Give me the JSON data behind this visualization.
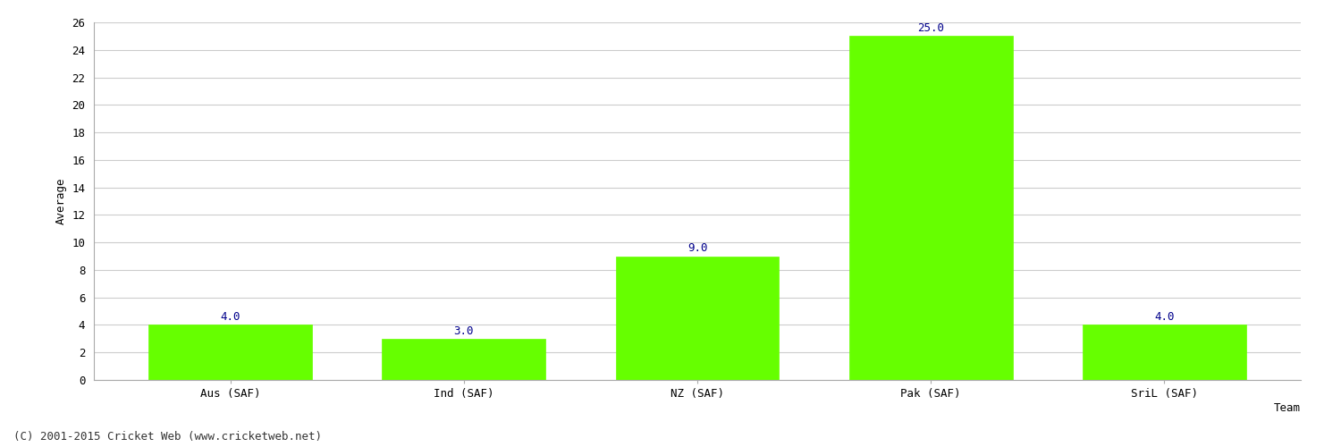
{
  "categories": [
    "Aus (SAF)",
    "Ind (SAF)",
    "NZ (SAF)",
    "Pak (SAF)",
    "SriL (SAF)"
  ],
  "values": [
    4.0,
    3.0,
    9.0,
    25.0,
    4.0
  ],
  "bar_color": "#66ff00",
  "bar_edge_color": "#66ff00",
  "label_color": "#00008B",
  "xlabel": "Team",
  "ylabel": "Average",
  "ylim": [
    0,
    26
  ],
  "yticks": [
    0,
    2,
    4,
    6,
    8,
    10,
    12,
    14,
    16,
    18,
    20,
    22,
    24,
    26
  ],
  "grid_color": "#cccccc",
  "bg_color": "#ffffff",
  "footer": "(C) 2001-2015 Cricket Web (www.cricketweb.net)",
  "label_fontsize": 9,
  "axis_fontsize": 9,
  "footer_fontsize": 9,
  "xlabel_fontsize": 9,
  "ylabel_fontsize": 9
}
